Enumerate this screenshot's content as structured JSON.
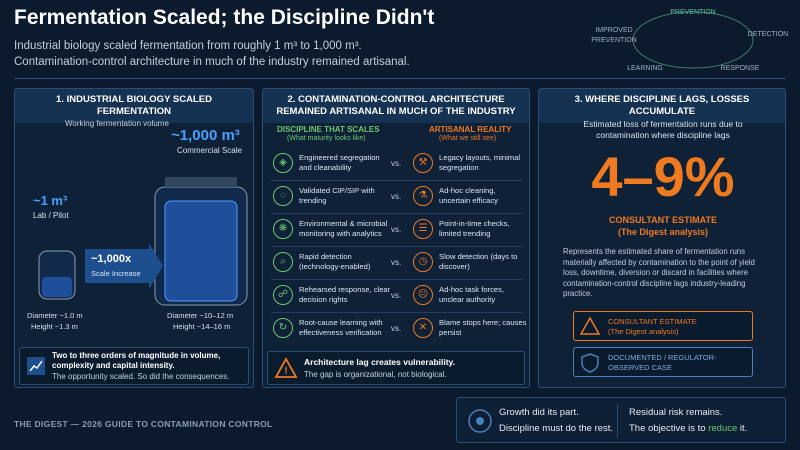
{
  "header": {
    "title": "Fermentation Scaled; the Discipline Didn't",
    "subtitle": [
      "Industrial biology scaled fermentation from roughly 1 m³ to 1,000 m³.",
      "Contamination-control architecture in much of the industry remained artisanal."
    ]
  },
  "cycle": {
    "top": "PREVENTION",
    "right": "DETECTION",
    "bottom_right": "RESPONSE",
    "bottom_left": "LEARNING",
    "left": [
      "IMPROVED",
      "PREVENTION"
    ]
  },
  "panel1": {
    "title": "1. INDUSTRIAL BIOLOGY SCALED FERMENTATION",
    "caption": "Working fermentation volume",
    "large_volume": "~1,000 m³",
    "large_label": "Commercial Scale",
    "small_volume": "~1 m³",
    "small_label": "Lab / Pilot",
    "arrow_value": "~1,000x",
    "arrow_label": "Scale Increase",
    "small_dims": [
      "Diameter ~1.0 m",
      "Height ~1.3 m"
    ],
    "large_dims": [
      "Diameter ~10–12 m",
      "Height ~14–16 m"
    ],
    "footer": {
      "bold": "Two to three orders of magnitude in volume, complexity and capital intensity.",
      "text": "The opportunity scaled. So did the consequences."
    }
  },
  "panel2": {
    "title": [
      "2. CONTAMINATION-CONTROL ARCHITECTURE",
      "REMAINED ARTISANAL IN MUCH OF THE INDUSTRY"
    ],
    "left_head": "DISCIPLINE THAT SCALES",
    "left_sub": "(What maturity looks like)",
    "right_head": "ARTISANAL REALITY",
    "right_sub": "(What we still see)",
    "rows": [
      {
        "left": "Engineered segregation and cleanability",
        "vs": "vs.",
        "right": "Legacy layouts, minimal segregation"
      },
      {
        "left": "Validated CIP/SIP with trending",
        "vs": "vs.",
        "right": "Ad-hoc cleaning, uncertain efficacy"
      },
      {
        "left": "Environmental & microbial monitoring with analytics",
        "vs": "vs.",
        "right": "Point-in-time checks, limited trending"
      },
      {
        "left": "Rapid detection (technology-enabled)",
        "vs": "vs.",
        "right": "Slow detection (days to discover)"
      },
      {
        "left": "Rehearsed response, clear decision rights",
        "vs": "vs.",
        "right": "Ad-hoc task forces, unclear authority"
      },
      {
        "left": "Root-cause learning with effectiveness verification",
        "vs": "vs.",
        "right": "Blame stops here; causes persist"
      }
    ],
    "footer": {
      "bold": "Architecture lag creates vulnerability.",
      "text": "The gap is organizational, not biological."
    }
  },
  "panel3": {
    "title": "3. WHERE DISCIPLINE LAGS, LOSSES ACCUMULATE",
    "intro": "Estimated loss of fermentation runs due to contamination where discipline lags",
    "big": "4–9%",
    "estimate": "CONSULTANT ESTIMATE",
    "estimate_sub": "(The Digest analysis)",
    "body": "Represents the estimated share of fermentation runs materially affected by contamination to the point of yield loss, downtime, diversion or discard in facilities where contamination-control discipline lags industry-leading practice.",
    "legend": [
      {
        "title": "CONSULTANT ESTIMATE",
        "sub": "(The Digest analysis)"
      },
      {
        "title": "DOCUMENTED / REGULATOR-OBSERVED CASE"
      }
    ]
  },
  "footer": {
    "brand": "THE DIGEST — 2026 GUIDE TO CONTAMINATION CONTROL",
    "growth": [
      "Growth did its part.",
      "Discipline must do the rest."
    ],
    "residual": "Residual risk remains.",
    "objective": [
      "The objective is to ",
      "reduce",
      " it."
    ]
  }
}
